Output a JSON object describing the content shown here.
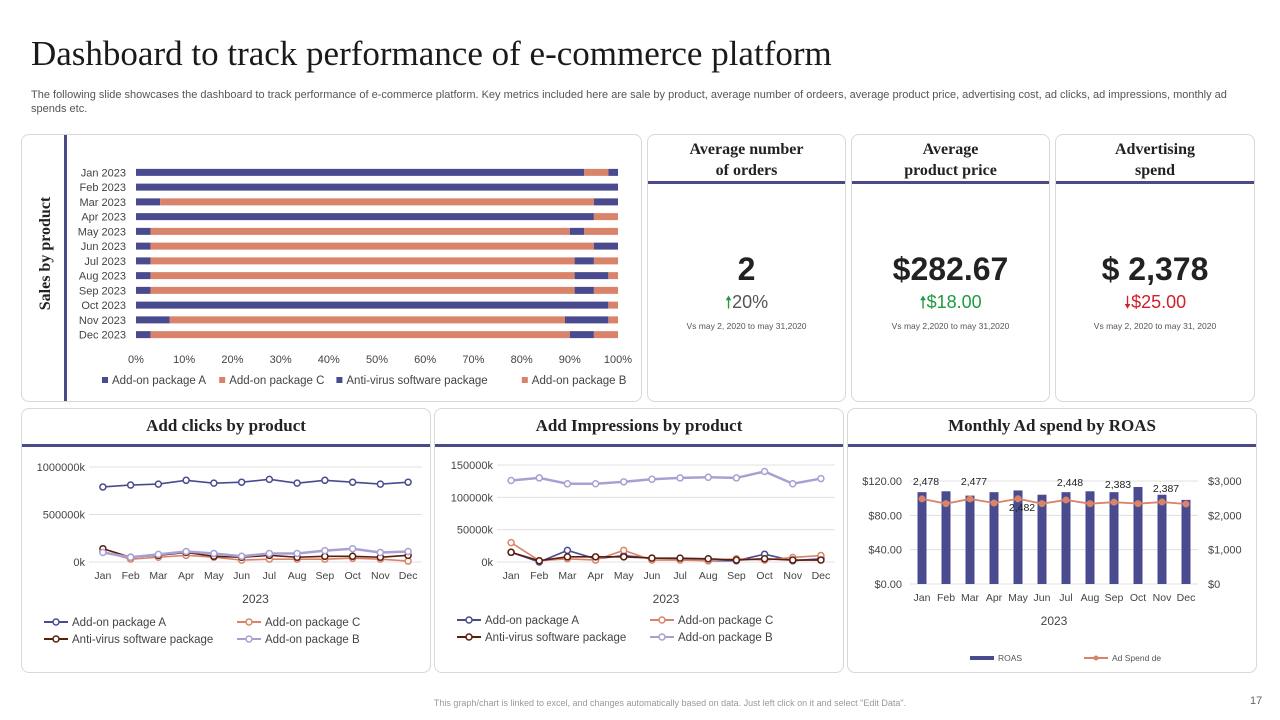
{
  "page": {
    "title": "Dashboard to track performance of e-commerce platform",
    "subtitle": "The following slide showcases the dashboard to track performance of e-commerce platform. Key metrics included here are sale by product, average number of ordeers, average product price, advertising cost, ad clicks, ad impressions, monthly ad spends etc.",
    "footer": "This graph/chart is linked to excel, and changes automatically based on data. Just left click on it and select \"Edit Data\".",
    "page_number": "17"
  },
  "colors": {
    "navy": "#4a4a8f",
    "salmon": "#d9846a",
    "dark_brown": "#5a1e0e",
    "lavender": "#a8a0d2",
    "accent_bar": "#4a4a87",
    "up_green": "#1f9a3c",
    "down_red": "#d0202b"
  },
  "kpis": [
    {
      "id": "orders",
      "title": "Average number\nof orders",
      "value": "2",
      "arrow": "up",
      "change": "20%",
      "change_style": "neutral",
      "note": "Vs may 2, 2020  to may 31,2020"
    },
    {
      "id": "price",
      "title": "Average\nproduct price",
      "value": "$282.67",
      "arrow": "up",
      "change": "$18.00",
      "change_style": "up",
      "note": "Vs may 2,2020 to may 31,2020"
    },
    {
      "id": "adspend",
      "title": "Advertising\nspend",
      "value": "$ 2,378",
      "arrow": "down",
      "change": "$25.00",
      "change_style": "down",
      "note": "Vs may 2, 2020  to may 31, 2020"
    }
  ],
  "chart_data": [
    {
      "id": "sales",
      "type": "bar",
      "orientation": "horizontal",
      "stacked": "percent",
      "ylabel": "Sales by product",
      "categories": [
        "Jan 2023",
        "Feb 2023",
        "Mar 2023",
        "Apr 2023",
        "May 2023",
        "Jun 2023",
        "Jul 2023",
        "Aug 2023",
        "Sep 2023",
        "Oct 2023",
        "Nov 2023",
        "Dec 2023"
      ],
      "series": [
        {
          "name": "Add-on package A",
          "color": "#4a4a8f",
          "values": [
            93,
            100,
            5,
            95,
            3,
            3,
            3,
            3,
            3,
            98,
            7,
            3
          ]
        },
        {
          "name": "Add-on package C",
          "color": "#d9846a",
          "values": [
            5,
            0,
            90,
            5,
            87,
            92,
            88,
            88,
            88,
            2,
            82,
            87
          ]
        },
        {
          "name": "Anti-virus software package",
          "color": "#4a4a8f",
          "values": [
            2,
            0,
            5,
            0,
            3,
            5,
            4,
            7,
            4,
            0,
            9,
            5
          ]
        },
        {
          "name": "Add-on package B",
          "color": "#d9846a",
          "values": [
            0,
            0,
            0,
            0,
            7,
            0,
            5,
            2,
            5,
            0,
            2,
            5
          ]
        }
      ],
      "xticks": [
        "0%",
        "10%",
        "20%",
        "30%",
        "40%",
        "50%",
        "60%",
        "70%",
        "80%",
        "90%",
        "100%"
      ],
      "xlim": [
        0,
        100
      ],
      "legend": "bottom"
    },
    {
      "id": "clicks",
      "type": "line",
      "title": "Add clicks by product",
      "xlabel": "2023",
      "x": [
        "Jan",
        "Feb",
        "Mar",
        "Apr",
        "May",
        "Jun",
        "Jul",
        "Aug",
        "Sep",
        "Oct",
        "Nov",
        "Dec"
      ],
      "yticks": [
        "0k",
        "500000k",
        "1000000k"
      ],
      "ylim": [
        0,
        1000000
      ],
      "series": [
        {
          "name": "Add-on package A",
          "color": "#4a4a8f",
          "values": [
            790000,
            810000,
            820000,
            860000,
            830000,
            840000,
            870000,
            830000,
            860000,
            840000,
            820000,
            840000
          ]
        },
        {
          "name": "Add-on package C",
          "color": "#d9846a",
          "values": [
            110000,
            30000,
            50000,
            70000,
            50000,
            20000,
            30000,
            30000,
            30000,
            40000,
            30000,
            10000
          ]
        },
        {
          "name": "Anti-virus software package",
          "color": "#5a1e0e",
          "values": [
            140000,
            50000,
            70000,
            100000,
            60000,
            50000,
            70000,
            50000,
            60000,
            60000,
            50000,
            70000
          ]
        },
        {
          "name": "Add-on package B",
          "color": "#a8a0d2",
          "values": [
            100000,
            50000,
            80000,
            110000,
            90000,
            60000,
            90000,
            90000,
            120000,
            140000,
            100000,
            110000
          ]
        }
      ],
      "legend": "bottom"
    },
    {
      "id": "impressions",
      "type": "line",
      "title": "Add Impressions by product",
      "xlabel": "2023",
      "x": [
        "Jan",
        "Feb",
        "Mar",
        "Apr",
        "May",
        "Jun",
        "Jul",
        "Aug",
        "Sep",
        "Oct",
        "Nov",
        "Dec"
      ],
      "yticks": [
        "0k",
        "50000k",
        "100000k",
        "150000k"
      ],
      "ylim": [
        0,
        150000
      ],
      "series": [
        {
          "name": "Add-on package A",
          "color": "#4a4a8f",
          "values": [
            15000,
            0,
            18000,
            5000,
            10000,
            6000,
            5000,
            2000,
            2000,
            12000,
            2000,
            5000
          ]
        },
        {
          "name": "Add-on package C",
          "color": "#d9846a",
          "values": [
            30000,
            2000,
            5000,
            3000,
            18000,
            3000,
            3000,
            2000,
            5000,
            3000,
            7000,
            10000
          ]
        },
        {
          "name": "Anti-virus software package",
          "color": "#5a1e0e",
          "values": [
            15000,
            2000,
            8000,
            8000,
            8000,
            6000,
            6000,
            5000,
            3000,
            5000,
            3000,
            3000
          ]
        },
        {
          "name": "Add-on package B",
          "color": "#a8a0d2",
          "values": [
            126000,
            130000,
            121000,
            121000,
            124000,
            128000,
            130000,
            131000,
            130000,
            140000,
            121000,
            129000
          ]
        }
      ],
      "legend": "bottom"
    },
    {
      "id": "roas",
      "type": "bar",
      "title": "Monthly Ad spend by ROAS",
      "xlabel": "2023",
      "x": [
        "Jan",
        "Feb",
        "Mar",
        "Apr",
        "May",
        "Jun",
        "Jul",
        "Aug",
        "Sep",
        "Oct",
        "Nov",
        "Dec"
      ],
      "left_axis": {
        "ticks": [
          "$0.00",
          "$40.00",
          "$80.00",
          "$120.00"
        ],
        "ylim": [
          0,
          120
        ]
      },
      "right_axis": {
        "ticks": [
          "$0",
          "$1,000",
          "$2,000",
          "$3,000"
        ],
        "ylim": [
          0,
          3000
        ]
      },
      "series": [
        {
          "name": "ROAS",
          "type": "bar",
          "axis": "left",
          "color": "#4a4a8f",
          "values": [
            107,
            108,
            103,
            107,
            109,
            104,
            107,
            108,
            107,
            113,
            104,
            98
          ]
        },
        {
          "name": "Ad Spend de",
          "type": "line",
          "axis": "right",
          "color": "#d9846a",
          "values": [
            2478,
            2340,
            2477,
            2360,
            2482,
            2340,
            2448,
            2340,
            2383,
            2340,
            2387,
            2330
          ]
        }
      ],
      "data_labels": [
        {
          "index": 0,
          "text": "2,478"
        },
        {
          "index": 2,
          "text": "2,477"
        },
        {
          "index": 4,
          "text": "2,482"
        },
        {
          "index": 6,
          "text": "2,448"
        },
        {
          "index": 8,
          "text": "2,383"
        },
        {
          "index": 10,
          "text": "2,387"
        }
      ],
      "legend": "bottom"
    }
  ]
}
